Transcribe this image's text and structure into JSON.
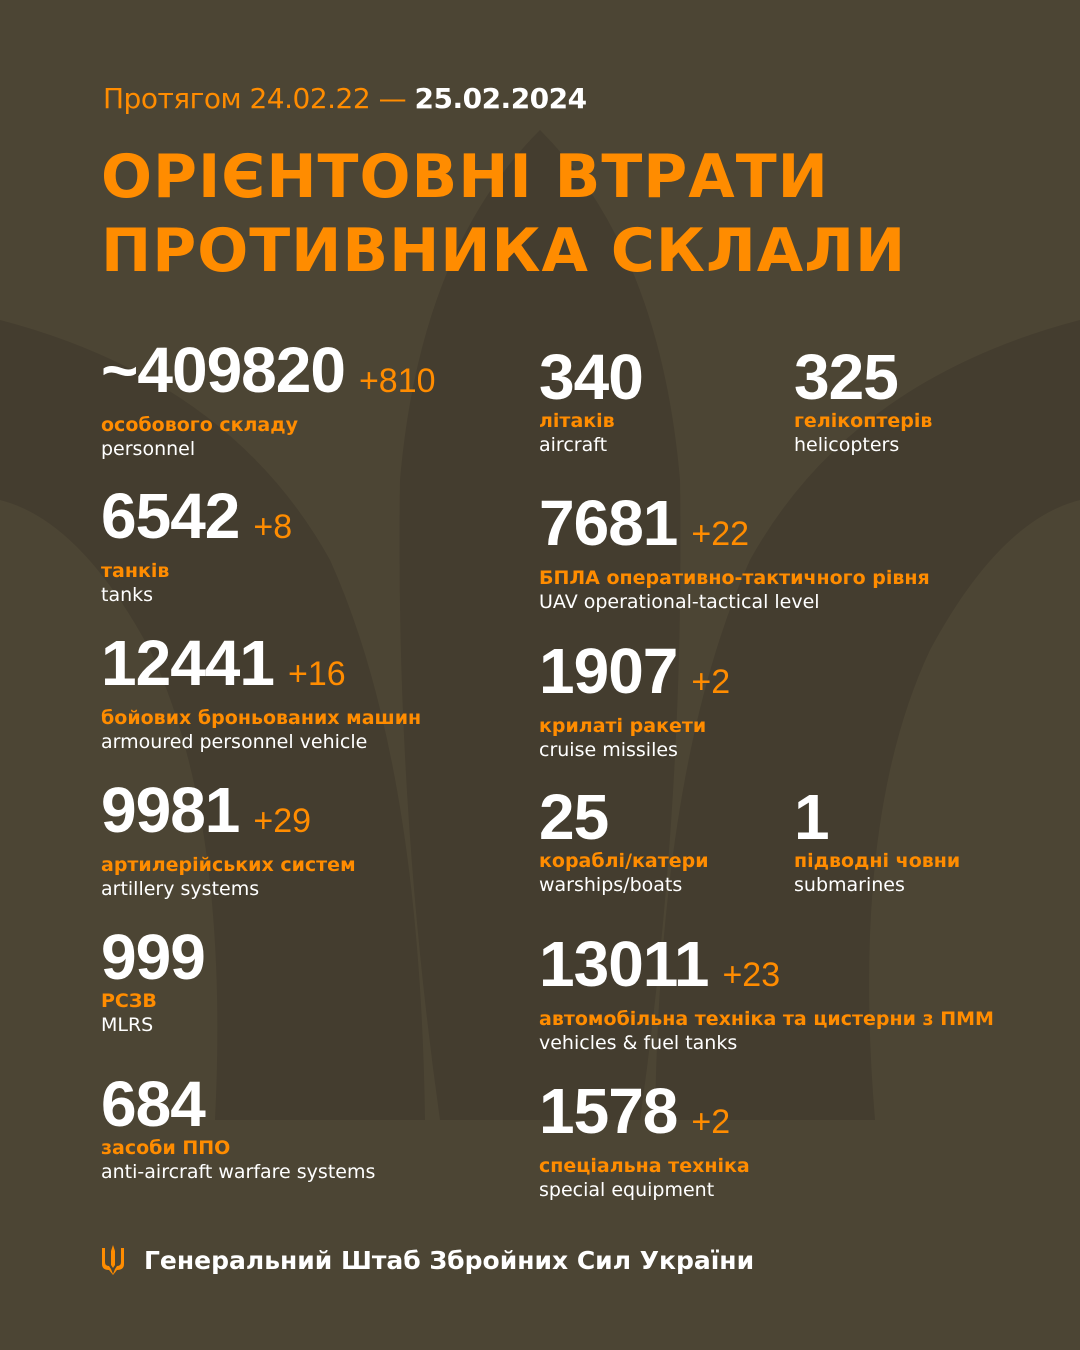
{
  "header": {
    "period_prefix": "Протягом 24.02.22 —",
    "period_end": "25.02.2024",
    "title_line1": "ОРІЄНТОВНІ ВТРАТИ",
    "title_line2": "ПРОТИВНИКА СКЛАЛИ"
  },
  "colors": {
    "background": "#4c4534",
    "accent": "#ff8c00",
    "text": "#ffffff"
  },
  "stats": [
    {
      "value": "~409820",
      "delta": "+810",
      "ua": "особового складу",
      "en": "personnel"
    },
    {
      "value": "6542",
      "delta": "+8",
      "ua": "танків",
      "en": "tanks"
    },
    {
      "value": "12441",
      "delta": "+16",
      "ua": "бойових броньованих машин",
      "en": "armoured personnel vehicle"
    },
    {
      "value": "9981",
      "delta": "+29",
      "ua": "артилерійських систем",
      "en": "artillery systems"
    },
    {
      "value": "999",
      "delta": "",
      "ua": "РСЗВ",
      "en": "MLRS"
    },
    {
      "value": "684",
      "delta": "",
      "ua": "засоби ППО",
      "en": "anti-aircraft warfare systems"
    },
    {
      "value": "340",
      "delta": "",
      "ua": "літаків",
      "en": "aircraft"
    },
    {
      "value": "325",
      "delta": "",
      "ua": "гелікоптерів",
      "en": "helicopters"
    },
    {
      "value": "7681",
      "delta": "+22",
      "ua": "БПЛА оперативно-тактичного рівня",
      "en": "UAV operational-tactical level"
    },
    {
      "value": "1907",
      "delta": "+2",
      "ua": "крилаті ракети",
      "en": "cruise missiles"
    },
    {
      "value": "25",
      "delta": "",
      "ua": "кораблі/катери",
      "en": "warships/boats"
    },
    {
      "value": "1",
      "delta": "",
      "ua": "підводні човни",
      "en": "submarines"
    },
    {
      "value": "13011",
      "delta": "+23",
      "ua": "автомобільна техніка та цистерни з ПММ",
      "en": "vehicles & fuel tanks"
    },
    {
      "value": "1578",
      "delta": "+2",
      "ua": "спеціальна техніка",
      "en": "special equipment"
    }
  ],
  "footer": {
    "icon": "trident-icon",
    "text": "Генеральний Штаб Збройних Сил України"
  }
}
